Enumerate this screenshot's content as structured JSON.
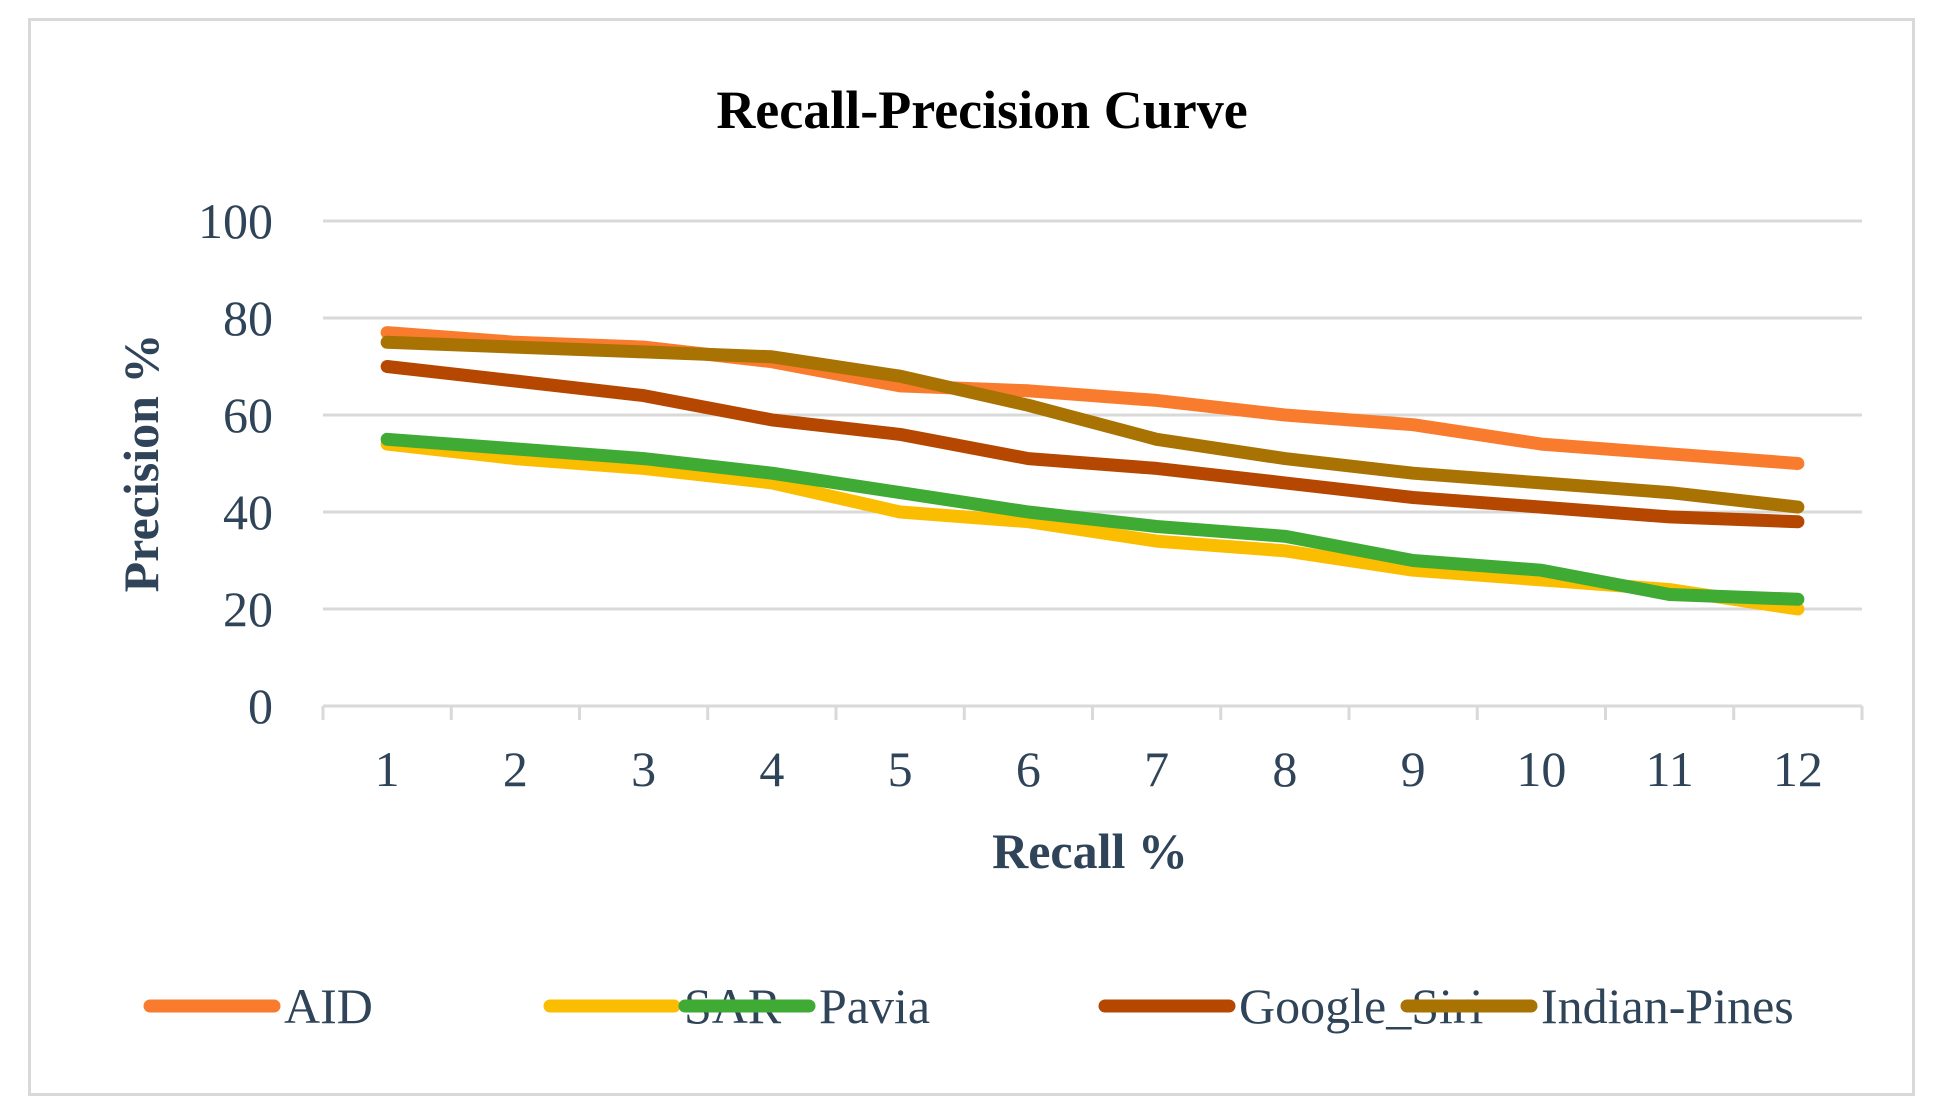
{
  "chart_data": {
    "type": "line",
    "title": "Recall-Precision Curve",
    "xlabel": "Recall %",
    "ylabel": "Precision %",
    "categories": [
      "1",
      "2",
      "3",
      "4",
      "5",
      "6",
      "7",
      "8",
      "9",
      "10",
      "11",
      "12"
    ],
    "ylim": [
      0,
      100
    ],
    "yticks": [
      "0",
      "20",
      "40",
      "60",
      "80",
      "100"
    ],
    "grid": true,
    "legend_position": "bottom",
    "series": [
      {
        "name": "AID",
        "color": "#f97c2e",
        "values": [
          77,
          75,
          74,
          71,
          66,
          65,
          63,
          60,
          58,
          54,
          52,
          50
        ]
      },
      {
        "name": "SAR",
        "color": "#fbbd00",
        "values": [
          54,
          51,
          49,
          46,
          40,
          38,
          34,
          32,
          28,
          26,
          24,
          20
        ]
      },
      {
        "name": "Pavia",
        "color": "#3fab35",
        "values": [
          55,
          53,
          51,
          48,
          44,
          40,
          37,
          35,
          30,
          28,
          23,
          22
        ]
      },
      {
        "name": "Google_Siri",
        "color": "#b54700",
        "values": [
          70,
          67,
          64,
          59,
          56,
          51,
          49,
          46,
          43,
          41,
          39,
          38
        ]
      },
      {
        "name": "Indian-Pines",
        "color": "#a87303",
        "values": [
          75,
          74,
          73,
          72,
          68,
          62,
          55,
          51,
          48,
          46,
          44,
          41
        ]
      }
    ]
  }
}
